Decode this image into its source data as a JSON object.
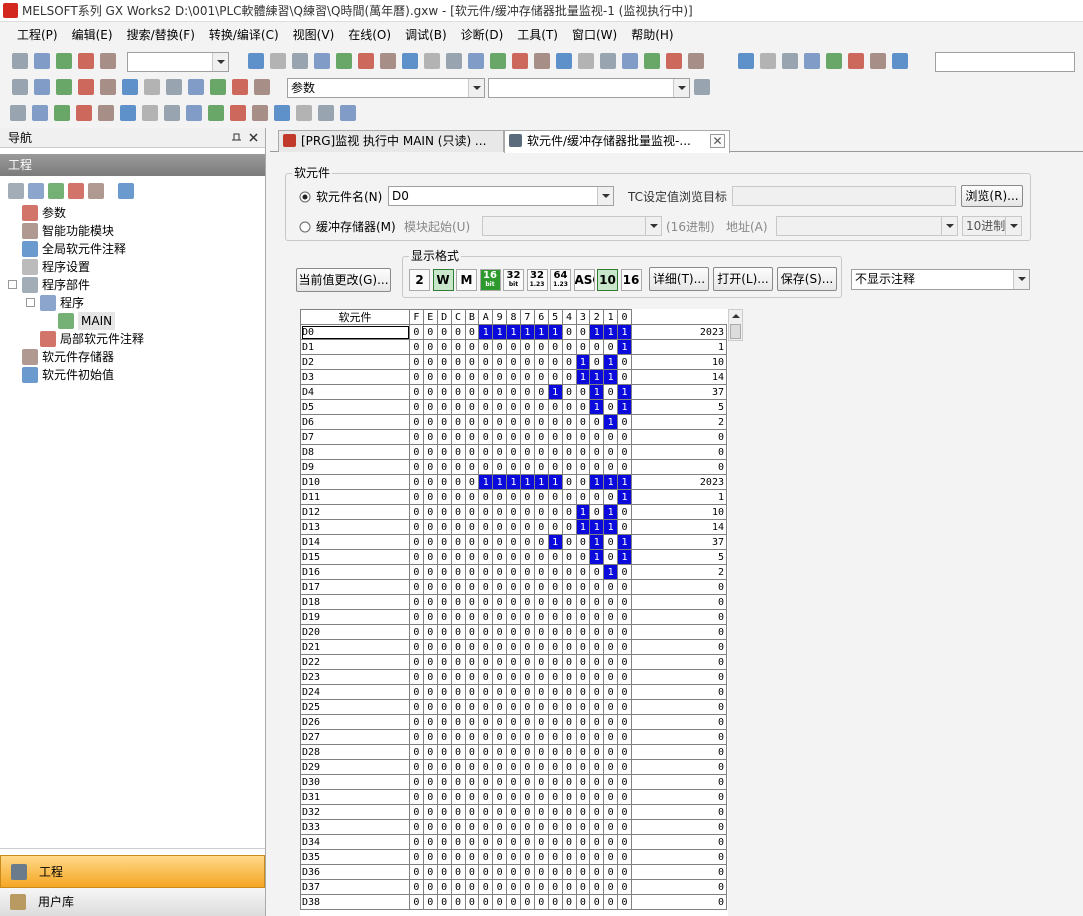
{
  "title_bar": "MELSOFT系列 GX Works2 D:\\001\\PLC軟體練習\\Q練習\\Q時間(萬年曆).gxw - [软元件/缓冲存储器批量监视-1 (监视执行中)]",
  "menu": [
    "工程(P)",
    "编辑(E)",
    "搜索/替换(F)",
    "转换/编译(C)",
    "视图(V)",
    "在线(O)",
    "调试(B)",
    "诊断(D)",
    "工具(T)",
    "窗口(W)",
    "帮助(H)"
  ],
  "toolbar": {
    "combo": "参数"
  },
  "navigation": {
    "title": "导航",
    "section": "工程",
    "tree": [
      {
        "label": "参数"
      },
      {
        "label": "智能功能模块"
      },
      {
        "label": "全局软元件注释"
      },
      {
        "label": "程序设置"
      },
      {
        "label": "程序部件",
        "children": [
          {
            "label": "程序",
            "children": [
              {
                "label": "MAIN"
              }
            ]
          },
          {
            "label": "局部软元件注释"
          }
        ]
      },
      {
        "label": "软元件存储器"
      },
      {
        "label": "软元件初始值"
      }
    ],
    "bottom": [
      "工程",
      "用户库"
    ]
  },
  "tabs": [
    "[PRG]监视 执行中 MAIN (只读) ...",
    "软元件/缓冲存储器批量监视-..."
  ],
  "device_group": {
    "legend": "软元件",
    "device_radio": "软元件名(N)",
    "device_value": "D0",
    "tc_label": "TC设定值浏览目标",
    "browse": "浏览(R)...",
    "buffer_radio": "缓冲存储器(M)",
    "module_start": "模块起始(U)",
    "hex": "(16进制)",
    "address": "地址(A)",
    "decimal": "10进制"
  },
  "change_button": "当前值更改(G)...",
  "format_group": {
    "legend": "显示格式",
    "buttons": [
      {
        "text": "2"
      },
      {
        "text": "W"
      },
      {
        "text": "M"
      },
      {
        "text": "16",
        "sub": "bit"
      },
      {
        "text": "32",
        "sub": "bit"
      },
      {
        "text": "32",
        "sub": "1.23"
      },
      {
        "text": "64",
        "sub": "1.23"
      },
      {
        "text": "ASC"
      },
      {
        "text": "10"
      },
      {
        "text": "16"
      }
    ]
  },
  "detail": "详细(T)...",
  "open": "打开(L)...",
  "save": "保存(S)...",
  "comment_select": "不显示注释",
  "table": {
    "header": "软元件",
    "bit_header": "FEDCBA9876543210",
    "rows": [
      {
        "device": "D0",
        "bits": "0000011111100111",
        "value": 2023
      },
      {
        "device": "D1",
        "bits": "0000000000000001",
        "value": 1
      },
      {
        "device": "D2",
        "bits": "0000000000001010",
        "value": 10
      },
      {
        "device": "D3",
        "bits": "0000000000001110",
        "value": 14
      },
      {
        "device": "D4",
        "bits": "0000000000100101",
        "value": 37
      },
      {
        "device": "D5",
        "bits": "0000000000000101",
        "value": 5
      },
      {
        "device": "D6",
        "bits": "0000000000000010",
        "value": 2
      },
      {
        "device": "D7",
        "bits": "0000000000000000",
        "value": 0
      },
      {
        "device": "D8",
        "bits": "0000000000000000",
        "value": 0
      },
      {
        "device": "D9",
        "bits": "0000000000000000",
        "value": 0
      },
      {
        "device": "D10",
        "bits": "0000011111100111",
        "value": 2023
      },
      {
        "device": "D11",
        "bits": "0000000000000001",
        "value": 1
      },
      {
        "device": "D12",
        "bits": "0000000000001010",
        "value": 10
      },
      {
        "device": "D13",
        "bits": "0000000000001110",
        "value": 14
      },
      {
        "device": "D14",
        "bits": "0000000000100101",
        "value": 37
      },
      {
        "device": "D15",
        "bits": "0000000000000101",
        "value": 5
      },
      {
        "device": "D16",
        "bits": "0000000000000010",
        "value": 2
      },
      {
        "device": "D17",
        "bits": "0000000000000000",
        "value": 0
      },
      {
        "device": "D18",
        "bits": "0000000000000000",
        "value": 0
      },
      {
        "device": "D19",
        "bits": "0000000000000000",
        "value": 0
      },
      {
        "device": "D20",
        "bits": "0000000000000000",
        "value": 0
      },
      {
        "device": "D21",
        "bits": "0000000000000000",
        "value": 0
      },
      {
        "device": "D22",
        "bits": "0000000000000000",
        "value": 0
      },
      {
        "device": "D23",
        "bits": "0000000000000000",
        "value": 0
      },
      {
        "device": "D24",
        "bits": "0000000000000000",
        "value": 0
      },
      {
        "device": "D25",
        "bits": "0000000000000000",
        "value": 0
      },
      {
        "device": "D26",
        "bits": "0000000000000000",
        "value": 0
      },
      {
        "device": "D27",
        "bits": "0000000000000000",
        "value": 0
      },
      {
        "device": "D28",
        "bits": "0000000000000000",
        "value": 0
      },
      {
        "device": "D29",
        "bits": "0000000000000000",
        "value": 0
      },
      {
        "device": "D30",
        "bits": "0000000000000000",
        "value": 0
      },
      {
        "device": "D31",
        "bits": "0000000000000000",
        "value": 0
      },
      {
        "device": "D32",
        "bits": "0000000000000000",
        "value": 0
      },
      {
        "device": "D33",
        "bits": "0000000000000000",
        "value": 0
      },
      {
        "device": "D34",
        "bits": "0000000000000000",
        "value": 0
      },
      {
        "device": "D35",
        "bits": "0000000000000000",
        "value": 0
      },
      {
        "device": "D36",
        "bits": "0000000000000000",
        "value": 0
      },
      {
        "device": "D37",
        "bits": "0000000000000000",
        "value": 0
      },
      {
        "device": "D38",
        "bits": "0000000000000000",
        "value": 0
      }
    ]
  }
}
